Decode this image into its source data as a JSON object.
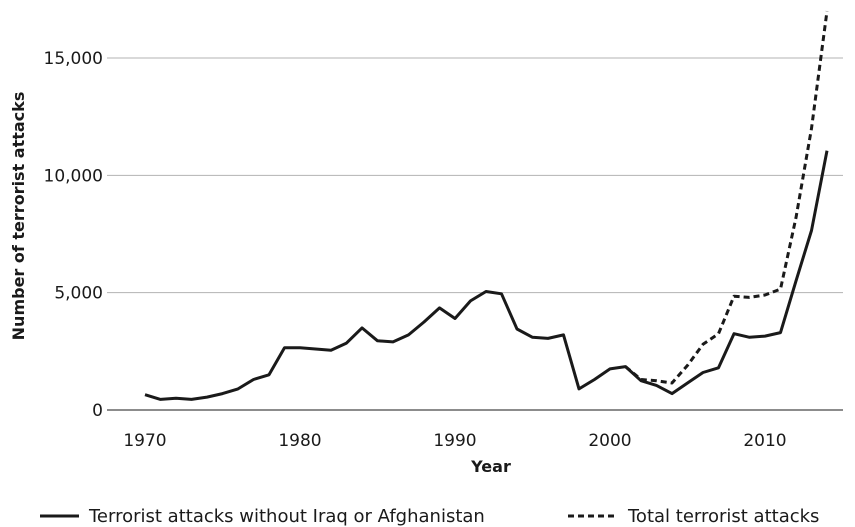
{
  "chart_data": {
    "type": "line",
    "title": "",
    "xlabel": "Year",
    "ylabel": "Number of terrorist attacks",
    "xlim": [
      1970,
      2014
    ],
    "ylim": [
      0,
      17000
    ],
    "x_ticks": [
      1970,
      1980,
      1990,
      2000,
      2010
    ],
    "y_ticks": [
      0,
      5000,
      10000,
      15000
    ],
    "y_tick_labels": [
      "0",
      "5,000",
      "10,000",
      "15,000"
    ],
    "grid": "horizontal",
    "legend_position": "bottom",
    "series": [
      {
        "name": "Terrorist attacks without Iraq or Afghanistan",
        "style": "solid",
        "x": [
          1970,
          1971,
          1972,
          1973,
          1974,
          1975,
          1976,
          1977,
          1978,
          1979,
          1980,
          1981,
          1982,
          1983,
          1984,
          1985,
          1986,
          1987,
          1988,
          1989,
          1990,
          1991,
          1992,
          1993,
          1994,
          1995,
          1996,
          1997,
          1998,
          1999,
          2000,
          2001,
          2002,
          2003,
          2004,
          2005,
          2006,
          2007,
          2008,
          2009,
          2010,
          2011,
          2012,
          2013,
          2014
        ],
        "values": [
          650,
          450,
          500,
          450,
          550,
          700,
          900,
          1300,
          1500,
          2650,
          2650,
          2600,
          2550,
          2850,
          3500,
          2950,
          2900,
          3200,
          3750,
          4350,
          3900,
          4650,
          5050,
          4950,
          3450,
          3100,
          3050,
          3200,
          900,
          1300,
          1750,
          1850,
          1250,
          1050,
          700,
          1150,
          1600,
          1800,
          3250,
          3100,
          3150,
          3300,
          5500,
          7650,
          11050
        ]
      },
      {
        "name": "Total terrorist attacks",
        "style": "dashed",
        "x": [
          2001,
          2002,
          2003,
          2004,
          2005,
          2006,
          2007,
          2008,
          2009,
          2010,
          2011,
          2012,
          2013,
          2014
        ],
        "values": [
          1850,
          1300,
          1250,
          1150,
          1900,
          2800,
          3250,
          4850,
          4800,
          4900,
          5150,
          8200,
          12000,
          17000
        ]
      }
    ]
  }
}
